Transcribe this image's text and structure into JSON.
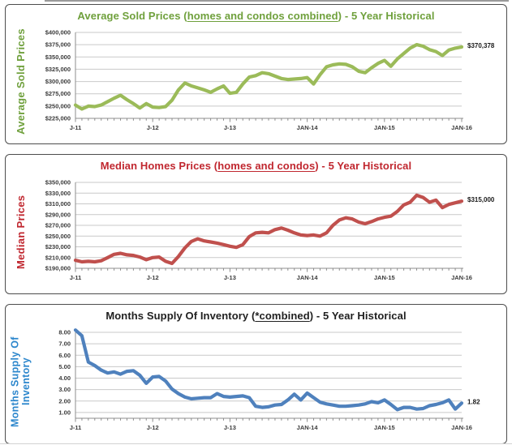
{
  "page": {
    "description": "Three stacked 5-year historical real estate line charts",
    "background": "#ffffff",
    "panel_border_color": "#4d4d4d",
    "grid_color": "#c9c9c9",
    "axis_color": "#8c8c8c",
    "tick_text_color": "#3b3b3b",
    "annotation_color": "#1a1a1a"
  },
  "chart_data": [
    {
      "type": "line",
      "title": "Average Sold Prices (homes and condos combined) - 5 Year Historical",
      "title_parts": {
        "prefix": "Average Sold Prices (",
        "underlined": "homes and condos combined",
        "suffix": ") - 5 Year Historical"
      },
      "ylabel": "Average Sold Prices",
      "ylabel_lines": [
        "Average Sold Prices"
      ],
      "xlabel": "",
      "frequency": "monthly",
      "x_start": "Jan-2011",
      "x_end": "Jan-2016",
      "x_tick_positions": [
        0,
        12,
        24,
        36,
        48,
        60
      ],
      "x_tick_labels": [
        "J-11",
        "J-12",
        "J-13",
        "JAN-14",
        "JAN-15",
        "JAN-16"
      ],
      "ylim": [
        225000,
        400000
      ],
      "y_ticks": [
        400000,
        375000,
        350000,
        325000,
        300000,
        275000,
        250000,
        225000
      ],
      "y_tick_labels": [
        "$400,000",
        "$375,000",
        "$350,000",
        "$325,000",
        "$300,000",
        "$275,000",
        "$250,000",
        "$225,000"
      ],
      "values": [
        252000,
        244000,
        250000,
        249000,
        252000,
        259000,
        266000,
        272000,
        263000,
        255000,
        246000,
        255000,
        248000,
        247000,
        249000,
        262000,
        283000,
        297000,
        291000,
        287000,
        283000,
        278000,
        285000,
        291000,
        276000,
        278000,
        295000,
        309000,
        312000,
        318000,
        316000,
        311000,
        306000,
        304000,
        305000,
        306000,
        308000,
        295000,
        314000,
        330000,
        334000,
        336000,
        335000,
        330000,
        321000,
        318000,
        328000,
        337000,
        343000,
        331000,
        346000,
        357000,
        368000,
        375000,
        372000,
        365000,
        361000,
        353000,
        364000,
        368000,
        370378
      ],
      "end_annotation": "$370,378",
      "legend": null,
      "grid": true,
      "colors": {
        "line": "#9BBB59",
        "title": "#6FA03C",
        "ylabel": "#6FA03C"
      }
    },
    {
      "type": "line",
      "title": "Median Homes Prices (homes and condos) - 5 Year Historical",
      "title_parts": {
        "prefix": "Median Homes Prices (",
        "underlined": "homes and condos",
        "suffix": ") - 5 Year Historical"
      },
      "ylabel": "Median Prices",
      "ylabel_lines": [
        "Median Prices"
      ],
      "xlabel": "",
      "frequency": "monthly",
      "x_start": "Jan-2011",
      "x_end": "Jan-2016",
      "x_tick_positions": [
        0,
        12,
        24,
        36,
        48,
        60
      ],
      "x_tick_labels": [
        "J-11",
        "J-12",
        "J-13",
        "JAN-14",
        "JAN-15",
        "JAN-16"
      ],
      "ylim": [
        190000,
        350000
      ],
      "y_ticks": [
        350000,
        330000,
        310000,
        290000,
        270000,
        250000,
        230000,
        210000,
        190000
      ],
      "y_tick_labels": [
        "$350,000",
        "$330,000",
        "$310,000",
        "$290,000",
        "$270,000",
        "$250,000",
        "$230,000",
        "$210,000",
        "$190,000"
      ],
      "values": [
        205000,
        202000,
        203000,
        202000,
        204000,
        210000,
        216000,
        218000,
        215000,
        214000,
        211000,
        206000,
        210000,
        211000,
        203000,
        199000,
        212000,
        228000,
        240000,
        245000,
        241000,
        239000,
        237000,
        234000,
        231000,
        229000,
        234000,
        249000,
        256000,
        257000,
        256000,
        262000,
        265000,
        261000,
        256000,
        252000,
        251000,
        252000,
        250000,
        256000,
        270000,
        280000,
        284000,
        282000,
        276000,
        273000,
        277000,
        282000,
        285000,
        287000,
        296000,
        308000,
        313000,
        326000,
        322000,
        313000,
        317000,
        303000,
        309000,
        312000,
        315000
      ],
      "end_annotation": "$315,000",
      "legend": null,
      "grid": true,
      "colors": {
        "line": "#C0504D",
        "title": "#C0272F",
        "ylabel": "#C0272F"
      }
    },
    {
      "type": "line",
      "title": "Months Supply Of Inventory (*combined) - 5 Year Historical",
      "title_parts": {
        "prefix": "Months Supply Of Inventory (",
        "underlined": "*combined",
        "suffix": ") - 5 Year Historical"
      },
      "ylabel": "Months Supply Of Inventory",
      "ylabel_lines": [
        "Months Supply Of",
        "Inventory"
      ],
      "xlabel": "",
      "frequency": "monthly",
      "x_start": "Jan-2011",
      "x_end": "Jan-2016",
      "x_tick_positions": [
        0,
        12,
        24,
        36,
        48,
        60
      ],
      "x_tick_labels": [
        "J-11",
        "J-12",
        "J-13",
        "JAN-14",
        "JAN-15",
        "JAN-16"
      ],
      "ylim": [
        0.5,
        8.0
      ],
      "y_ticks": [
        8,
        7,
        6,
        5,
        4,
        3,
        2,
        1
      ],
      "y_tick_labels": [
        "8.00",
        "7.00",
        "6.00",
        "5.00",
        "4.00",
        "3.00",
        "2.00",
        "1.00"
      ],
      "values": [
        8.2,
        7.7,
        5.4,
        5.1,
        4.7,
        4.45,
        4.55,
        4.35,
        4.6,
        4.65,
        4.25,
        3.55,
        4.1,
        4.15,
        3.75,
        3.05,
        2.65,
        2.35,
        2.2,
        2.25,
        2.3,
        2.3,
        2.65,
        2.4,
        2.35,
        2.4,
        2.45,
        2.3,
        1.55,
        1.45,
        1.5,
        1.65,
        1.7,
        2.1,
        2.6,
        2.1,
        2.7,
        2.3,
        1.9,
        1.75,
        1.65,
        1.55,
        1.55,
        1.6,
        1.65,
        1.75,
        1.95,
        1.85,
        2.1,
        1.7,
        1.25,
        1.45,
        1.45,
        1.3,
        1.35,
        1.6,
        1.7,
        1.85,
        2.1,
        1.3,
        1.82
      ],
      "end_annotation": "1.82",
      "legend": null,
      "grid": true,
      "colors": {
        "line": "#4F81BD",
        "title": "#1f1f1f",
        "ylabel": "#2B86CC"
      }
    }
  ]
}
